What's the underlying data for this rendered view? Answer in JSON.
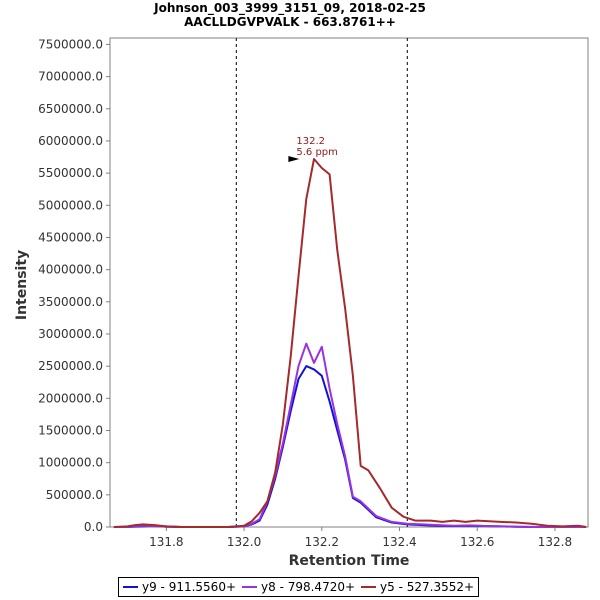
{
  "chart_data": {
    "type": "line",
    "title": "Johnson_003_3999_3151_09, 2018-02-25",
    "subtitle": "AACLLDGVPVALK - 663.8761++",
    "xlabel": "Retention Time",
    "ylabel": "Intensity",
    "xlim": [
      131.655,
      132.885
    ],
    "ylim": [
      0,
      7600000
    ],
    "xticks": [
      131.8,
      132.0,
      132.2,
      132.4,
      132.6,
      132.8
    ],
    "yticks": [
      0,
      500000,
      1000000,
      1500000,
      2000000,
      2500000,
      3000000,
      3500000,
      4000000,
      4500000,
      5000000,
      5500000,
      6000000,
      6500000,
      7000000,
      7500000
    ],
    "xtick_labels": [
      "131.8",
      "132.0",
      "132.2",
      "132.4",
      "132.6",
      "132.8"
    ],
    "ytick_labels": [
      "0.0",
      "500000.0",
      "1000000.0",
      "1500000.0",
      "2000000.0",
      "2500000.0",
      "3000000.0",
      "3500000.0",
      "4000000.0",
      "4500000.0",
      "5000000.0",
      "5500000.0",
      "6000000.0",
      "6500000.0",
      "7000000.0",
      "7500000.0"
    ],
    "integration_bounds": [
      131.98,
      132.42
    ],
    "peak_annotation": {
      "x": 132.15,
      "y": 5720000,
      "line1": "132.2",
      "line2": "5.6 ppm",
      "color": "#8B1A1A"
    },
    "series": [
      {
        "name": "y9 - 911.5560+",
        "color": "#1111DD",
        "x": [
          131.665,
          131.7,
          131.74,
          131.77,
          131.8,
          131.84,
          131.9,
          131.96,
          131.98,
          132.0,
          132.02,
          132.04,
          132.06,
          132.08,
          132.1,
          132.12,
          132.14,
          132.16,
          132.18,
          132.2,
          132.22,
          132.24,
          132.26,
          132.28,
          132.3,
          132.34,
          132.38,
          132.42,
          132.46,
          132.5,
          132.54,
          132.58,
          132.62,
          132.66,
          132.7,
          132.75,
          132.8,
          132.85,
          132.88
        ],
        "y": [
          0,
          0,
          10000,
          20000,
          5000,
          0,
          0,
          0,
          5000,
          10000,
          40000,
          100000,
          350000,
          750000,
          1250000,
          1800000,
          2300000,
          2500000,
          2450000,
          2350000,
          1950000,
          1500000,
          1050000,
          450000,
          380000,
          150000,
          70000,
          40000,
          30000,
          20000,
          15000,
          20000,
          15000,
          10000,
          5000,
          0,
          0,
          0,
          0
        ]
      },
      {
        "name": "y8 - 798.4720+",
        "color": "#9933DD",
        "x": [
          131.665,
          131.7,
          131.74,
          131.77,
          131.8,
          131.84,
          131.9,
          131.96,
          131.98,
          132.0,
          132.02,
          132.04,
          132.06,
          132.08,
          132.1,
          132.12,
          132.14,
          132.16,
          132.18,
          132.2,
          132.22,
          132.24,
          132.26,
          132.28,
          132.3,
          132.34,
          132.38,
          132.42,
          132.46,
          132.5,
          132.54,
          132.58,
          132.62,
          132.66,
          132.7,
          132.75,
          132.8,
          132.85,
          132.88
        ],
        "y": [
          0,
          0,
          20000,
          10000,
          10000,
          0,
          0,
          0,
          10000,
          10000,
          50000,
          120000,
          400000,
          800000,
          1300000,
          1900000,
          2500000,
          2850000,
          2550000,
          2800000,
          2150000,
          1600000,
          1100000,
          470000,
          400000,
          170000,
          80000,
          50000,
          40000,
          30000,
          20000,
          25000,
          15000,
          10000,
          5000,
          0,
          0,
          0,
          0
        ]
      },
      {
        "name": "y5 - 527.3552+",
        "color": "#A52A2A",
        "x": [
          131.665,
          131.7,
          131.72,
          131.74,
          131.77,
          131.8,
          131.84,
          131.9,
          131.96,
          131.98,
          132.0,
          132.02,
          132.04,
          132.06,
          132.08,
          132.1,
          132.12,
          132.14,
          132.16,
          132.18,
          132.2,
          132.22,
          132.24,
          132.26,
          132.28,
          132.3,
          132.32,
          132.35,
          132.38,
          132.41,
          132.44,
          132.48,
          132.51,
          132.54,
          132.57,
          132.6,
          132.63,
          132.66,
          132.7,
          132.74,
          132.78,
          132.82,
          132.86,
          132.88
        ],
        "y": [
          0,
          10000,
          30000,
          40000,
          30000,
          10000,
          0,
          0,
          0,
          10000,
          20000,
          90000,
          220000,
          400000,
          850000,
          1600000,
          2650000,
          3900000,
          5100000,
          5720000,
          5580000,
          5480000,
          4300000,
          3400000,
          2350000,
          950000,
          880000,
          600000,
          300000,
          160000,
          100000,
          100000,
          80000,
          100000,
          80000,
          100000,
          90000,
          80000,
          70000,
          50000,
          20000,
          10000,
          20000,
          0
        ]
      }
    ],
    "legend_position": "bottom-center"
  }
}
